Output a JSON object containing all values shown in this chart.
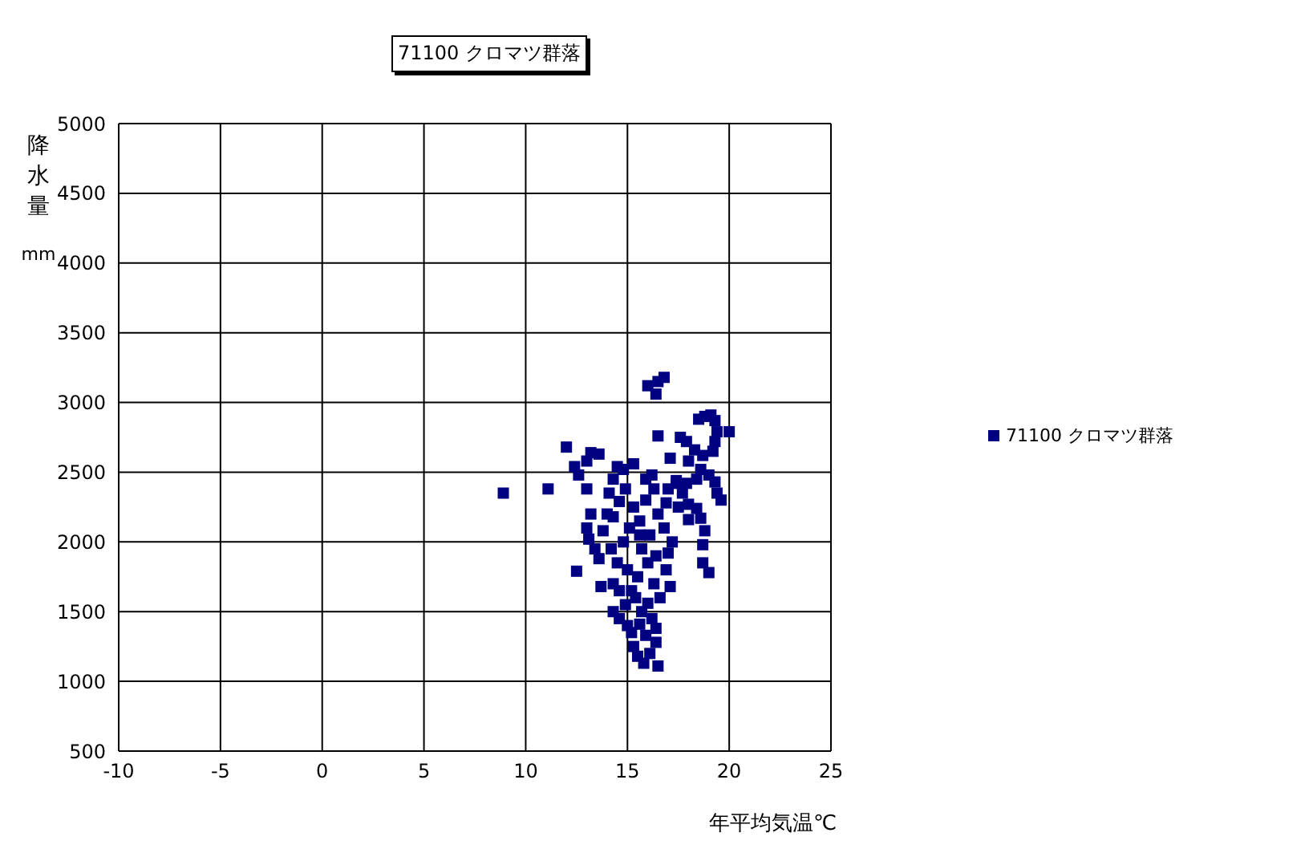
{
  "chart_data": {
    "type": "scatter",
    "title": "71100 クロマツ群落",
    "xlabel": "年平均気温℃",
    "ylabel": "降水量 mm",
    "xlim": [
      -10,
      25
    ],
    "xticks": [
      -10,
      -5,
      0,
      5,
      10,
      15,
      20,
      25
    ],
    "ylim": [
      500,
      5000
    ],
    "yticks": [
      500,
      1000,
      1500,
      2000,
      2500,
      3000,
      3500,
      4000,
      4500,
      5000
    ],
    "grid": true,
    "legend": "right",
    "marker": "square",
    "series": [
      {
        "name": "71100 クロマツ群落",
        "color": "#000080",
        "x": [
          8.9,
          11.1,
          12.0,
          12.4,
          12.6,
          13.0,
          12.5,
          16.5,
          16.0,
          16.5,
          16.8,
          16.4,
          16.5,
          20.0,
          19.6,
          19.0,
          18.7,
          15.3,
          13.0,
          13.2,
          13.6,
          18.5,
          18.8,
          19.1,
          19.3,
          19.4,
          19.3,
          19.2,
          18.7,
          18.3,
          18.0,
          17.6,
          17.9,
          18.6,
          19.0,
          19.3,
          19.4,
          18.4,
          17.9,
          17.4,
          17.1,
          17.0,
          17.7,
          18.0,
          18.4,
          18.6,
          18.8,
          18.7,
          18.0,
          17.5,
          13.2,
          13.0,
          13.1,
          13.4,
          13.6,
          13.8,
          14.0,
          14.3,
          14.1,
          14.3,
          14.5,
          14.8,
          14.9,
          14.6,
          14.2,
          14.5,
          14.8,
          14.3,
          13.7,
          14.6,
          15.0,
          15.1,
          15.3,
          15.6,
          15.9,
          15.9,
          16.2,
          16.3,
          16.5,
          16.8,
          17.2,
          17.0,
          16.9,
          17.1,
          16.6,
          16.3,
          16.0,
          15.7,
          15.5,
          15.4,
          15.7,
          16.2,
          16.4,
          16.4,
          16.1,
          15.8,
          15.5,
          15.3,
          15.2,
          15.0,
          14.6,
          14.3,
          15.9,
          15.6,
          16.0,
          15.2,
          16.4,
          16.1,
          15.6,
          14.9,
          17.4,
          16.9
        ],
        "values": [
          2350,
          2380,
          2680,
          2540,
          2480,
          2380,
          1790,
          1110,
          3120,
          3150,
          3180,
          3060,
          2760,
          2790,
          2300,
          1780,
          1850,
          2560,
          2580,
          2640,
          2630,
          2880,
          2900,
          2910,
          2870,
          2790,
          2720,
          2650,
          2620,
          2660,
          2580,
          2750,
          2720,
          2520,
          2480,
          2430,
          2350,
          2450,
          2420,
          2440,
          2600,
          2380,
          2350,
          2270,
          2240,
          2170,
          2080,
          1980,
          2160,
          2250,
          2200,
          2100,
          2020,
          1950,
          1880,
          2080,
          2200,
          2180,
          2350,
          2450,
          2540,
          2520,
          2380,
          2290,
          1950,
          1850,
          2000,
          1700,
          1680,
          1650,
          1800,
          2100,
          2250,
          2150,
          2300,
          2450,
          2480,
          2380,
          2200,
          2100,
          2000,
          1920,
          1800,
          1680,
          1600,
          1700,
          1850,
          1950,
          1750,
          1600,
          1500,
          1450,
          1380,
          1280,
          1200,
          1130,
          1180,
          1250,
          1350,
          1400,
          1450,
          1500,
          1330,
          1410,
          1560,
          1650,
          1900,
          2050,
          2050,
          1550,
          2420,
          2280
        ]
      }
    ]
  }
}
